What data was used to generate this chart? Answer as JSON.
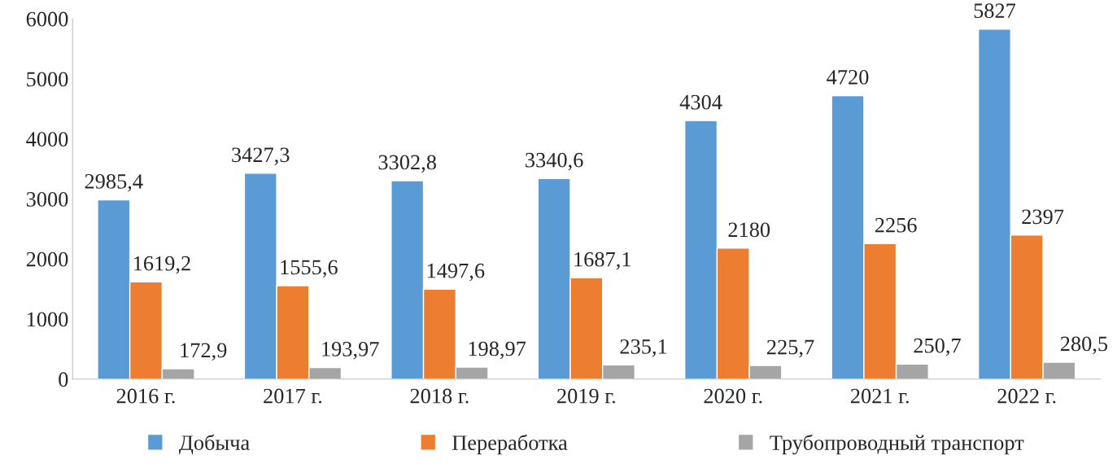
{
  "chart_data": {
    "type": "bar",
    "categories": [
      "2016 г.",
      "2017 г.",
      "2018 г.",
      "2019 г.",
      "2020 г.",
      "2021 г.",
      "2022 г."
    ],
    "series": [
      {
        "name": "Добыча",
        "color": "#5b9bd5",
        "values": [
          2985.4,
          3427.3,
          3302.8,
          3340.6,
          4304,
          4720,
          5827
        ],
        "value_labels": [
          "2985,4",
          "3427,3",
          "3302,8",
          "3340,6",
          "4304",
          "4720",
          "5827"
        ]
      },
      {
        "name": "Переработка",
        "color": "#ed7d31",
        "values": [
          1619.2,
          1555.6,
          1497.6,
          1687.1,
          2180,
          2256,
          2397
        ],
        "value_labels": [
          "1619,2",
          "1555,6",
          "1497,6",
          "1687,1",
          "2180",
          "2256",
          "2397"
        ]
      },
      {
        "name": "Трубопроводный транспорт",
        "color": "#a5a5a5",
        "values": [
          172.9,
          193.97,
          198.97,
          235.1,
          225.7,
          250.7,
          280.5
        ],
        "value_labels": [
          "172,9",
          "193,97",
          "198,97",
          "235,1",
          "225,7",
          "250,7",
          "280,5"
        ]
      }
    ],
    "ylim": [
      0,
      6000
    ],
    "yticks": [
      0,
      1000,
      2000,
      3000,
      4000,
      5000,
      6000
    ],
    "grid": false,
    "legend": "bottom"
  }
}
